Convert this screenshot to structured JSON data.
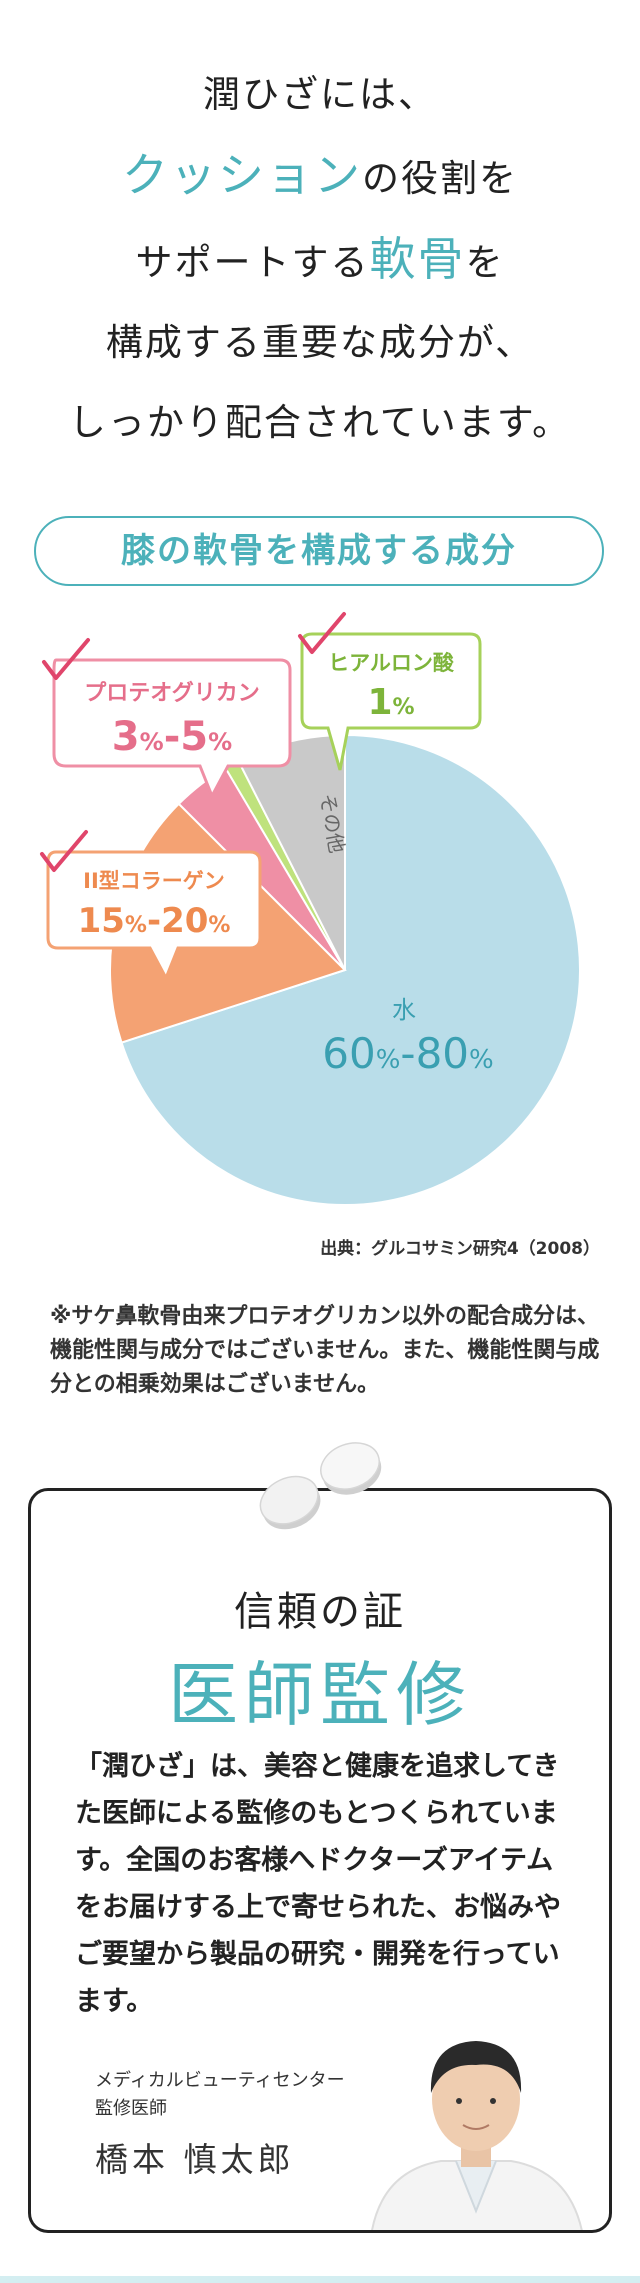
{
  "intro": {
    "line1": "潤ひざには、",
    "line2_accent": "クッション",
    "line2_rest": "の役割を",
    "line3_pre": "サポートする",
    "line3_accent": "軟骨",
    "line3_post": "を",
    "line4": "構成する重要な成分が、",
    "line5": "しっかり配合されています。"
  },
  "section_title": "膝の軟骨を構成する成分",
  "chart_data": {
    "type": "pie",
    "slices": [
      {
        "label": "水",
        "value_text": [
          "60",
          "%",
          "-",
          "80",
          "%"
        ],
        "value": 70,
        "color": "#b9dde9"
      },
      {
        "label": "II型コラーゲン",
        "value_text": [
          "15",
          "%",
          "-",
          "20",
          "%"
        ],
        "value": 17.5,
        "color": "#f4a273"
      },
      {
        "label": "プロテオグリカン",
        "value_text": [
          "3",
          "%",
          "-",
          "5",
          "%"
        ],
        "value": 4,
        "color": "#ef8fa5"
      },
      {
        "label": "ヒアルロン酸",
        "value_text": [
          "1",
          "%"
        ],
        "value": 1,
        "color": "#bfe27d"
      },
      {
        "label": "その他",
        "value": 7.5,
        "color": "#c9c9c9"
      }
    ]
  },
  "source": "出典：グルコサミン研究4（2008）",
  "note": "※サケ鼻軟骨由来プロテオグリカン以外の配合成分は、機能性関与成分ではございません。また、機能性関与成分との相乗効果はございません。",
  "card": {
    "title": "信頼の証",
    "heading": "医師監修",
    "body": "「潤ひざ」は、美容と健康を追求してきた医師による監修のもとつくられています。全国のお客様へドクターズアイテムをお届けする上で寄せられた、お悩みやご要望から製品の研究・開発を行っています。",
    "org_line1": "メディカルビューティセンター",
    "org_line2": "監修医師",
    "doctor_name": "橋本 慎太郎"
  },
  "colors": {
    "accent": "#4cb1ba",
    "water": "#b9dde9",
    "collagen": "#f4a273",
    "proteoglycan": "#ef8fa5",
    "hyaluronic": "#bfe27d",
    "other": "#c9c9c9",
    "check": "#e0456b"
  }
}
